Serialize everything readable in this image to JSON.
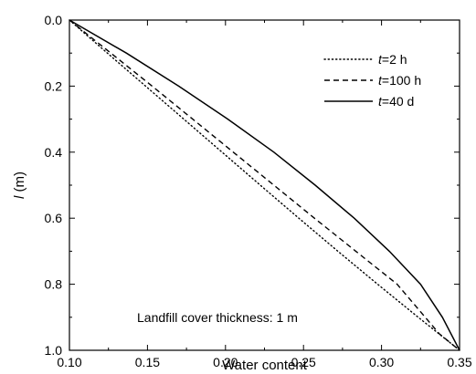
{
  "chart_data": {
    "type": "line",
    "title": "",
    "xlabel": "Water content",
    "ylabel": {
      "var": "l",
      "unit": " (m)"
    },
    "xlim": [
      0.1,
      0.35
    ],
    "ylim": [
      0.0,
      1.0
    ],
    "y_inverted": true,
    "x_ticks": [
      "0.10",
      "0.15",
      "0.20",
      "0.25",
      "0.30",
      "0.35"
    ],
    "y_ticks": [
      "0.0",
      "0.2",
      "0.4",
      "0.6",
      "0.8",
      "1.0"
    ],
    "grid": false,
    "legend_position": "top-right",
    "annotation": "Landfill cover thickness: 1 m",
    "series": [
      {
        "name": "t=2 h",
        "legend_var": "t",
        "legend_rest": "=2 h",
        "style": "dotted",
        "x": [
          0.1,
          0.1243,
          0.1488,
          0.1733,
          0.1978,
          0.2223,
          0.247,
          0.272,
          0.2975,
          0.3235,
          0.35
        ],
        "y": [
          0.0,
          0.1,
          0.2,
          0.3,
          0.4,
          0.5,
          0.6,
          0.7,
          0.8,
          0.9,
          1.0
        ]
      },
      {
        "name": "t=100 h",
        "legend_var": "t",
        "legend_rest": "=100 h",
        "style": "dashed",
        "x": [
          0.1,
          0.1265,
          0.153,
          0.179,
          0.205,
          0.231,
          0.257,
          0.2835,
          0.31,
          0.337,
          0.35
        ],
        "y": [
          0.0,
          0.1,
          0.2,
          0.3,
          0.4,
          0.5,
          0.6,
          0.7,
          0.8,
          0.95,
          1.0
        ]
      },
      {
        "name": "t=40 d",
        "legend_var": "t",
        "legend_rest": "=40 d",
        "style": "solid",
        "x": [
          0.1,
          0.1365,
          0.17,
          0.2015,
          0.231,
          0.2575,
          0.2825,
          0.305,
          0.325,
          0.339,
          0.35
        ],
        "y": [
          0.0,
          0.1,
          0.2,
          0.3,
          0.4,
          0.5,
          0.6,
          0.7,
          0.8,
          0.9,
          1.0
        ]
      }
    ]
  }
}
